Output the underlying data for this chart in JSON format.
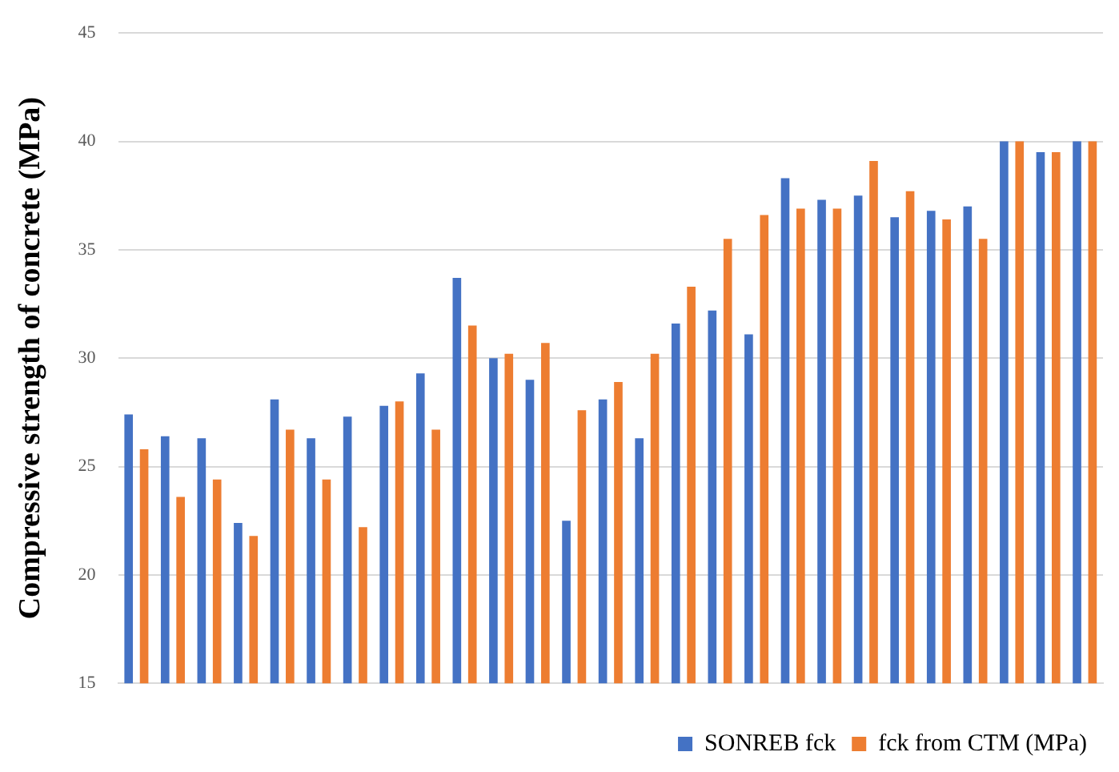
{
  "chart_data": {
    "type": "bar",
    "ylabel": "Compressive strength of concrete (MPa)",
    "categories": [
      null,
      null,
      null,
      null,
      null,
      null,
      null,
      null,
      null,
      null,
      null,
      null,
      null,
      null,
      null,
      null,
      null,
      null,
      null,
      null,
      null,
      null,
      null,
      null,
      null,
      null,
      null
    ],
    "series": [
      {
        "name": "SONREB fck",
        "color": "#4472c4",
        "values": [
          27.4,
          26.4,
          26.3,
          22.4,
          28.1,
          26.3,
          27.3,
          27.8,
          29.3,
          33.7,
          30.0,
          29.0,
          22.5,
          28.1,
          26.3,
          31.6,
          32.2,
          31.1,
          38.3,
          37.3,
          37.5,
          36.5,
          36.8,
          37.0,
          40,
          39.5,
          40
        ]
      },
      {
        "name": "fck from CTM (MPa)",
        "color": "#ed7d31",
        "values": [
          25.8,
          23.6,
          24.4,
          21.8,
          26.7,
          24.4,
          22.2,
          28.0,
          26.7,
          31.5,
          30.2,
          30.7,
          27.6,
          28.9,
          30.2,
          33.3,
          35.5,
          36.6,
          36.9,
          36.9,
          39.1,
          37.7,
          36.4,
          35.5,
          40,
          39.5,
          40
        ]
      }
    ],
    "ylim": [
      15,
      45
    ],
    "yticks": [
      15,
      20,
      25,
      30,
      35,
      40,
      45
    ],
    "grid": "y",
    "legend": "bottom right"
  }
}
